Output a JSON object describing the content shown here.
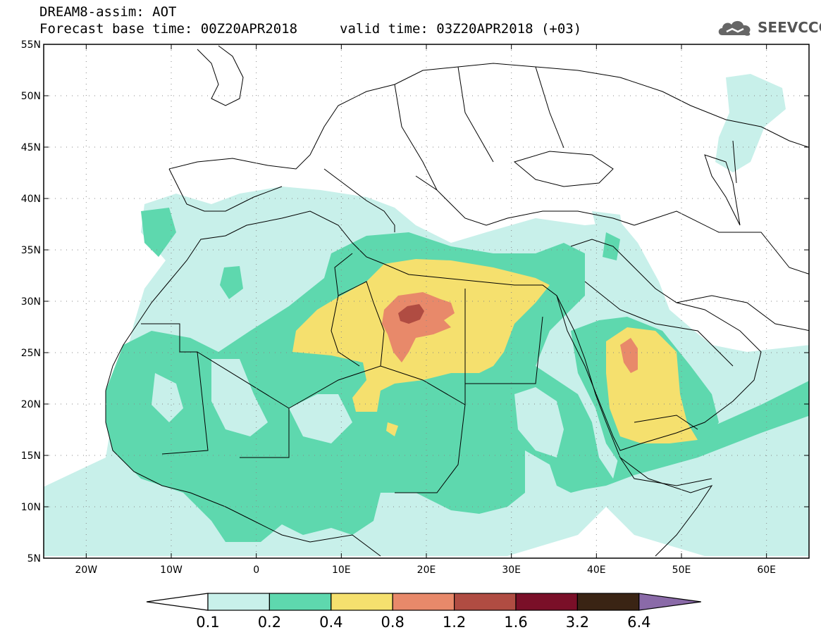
{
  "header": {
    "model_title": "DREAM8-assim: AOT",
    "base_time": "Forecast base time: 00Z20APR2018",
    "valid_time": "valid time: 03Z20APR2018 (+03)",
    "logo_text": "SEEVCCC"
  },
  "map": {
    "lon_range": [
      -25,
      65
    ],
    "lat_range": [
      5,
      55
    ],
    "lat_ticks": [
      {
        "value": 55,
        "label": "55N"
      },
      {
        "value": 50,
        "label": "50N"
      },
      {
        "value": 45,
        "label": "45N"
      },
      {
        "value": 40,
        "label": "40N"
      },
      {
        "value": 35,
        "label": "35N"
      },
      {
        "value": 30,
        "label": "30N"
      },
      {
        "value": 25,
        "label": "25N"
      },
      {
        "value": 20,
        "label": "20N"
      },
      {
        "value": 15,
        "label": "15N"
      },
      {
        "value": 10,
        "label": "10N"
      },
      {
        "value": 5,
        "label": "5N"
      }
    ],
    "lon_ticks": [
      {
        "value": -20,
        "label": "20W"
      },
      {
        "value": -10,
        "label": "10W"
      },
      {
        "value": 0,
        "label": "0"
      },
      {
        "value": 10,
        "label": "10E"
      },
      {
        "value": 20,
        "label": "20E"
      },
      {
        "value": 30,
        "label": "30E"
      },
      {
        "value": 40,
        "label": "40E"
      },
      {
        "value": 50,
        "label": "50E"
      },
      {
        "value": 60,
        "label": "60E"
      }
    ],
    "gridlines": "dotted"
  },
  "colorbar": {
    "labels": [
      "0.1",
      "0.2",
      "0.4",
      "0.8",
      "1.2",
      "1.6",
      "3.2",
      "6.4"
    ],
    "colors": [
      "#c8f0ea",
      "#5ed8ae",
      "#f5e06e",
      "#e8896a",
      "#b04c42",
      "#7a0f28",
      "#3a2414",
      "#8a6aa8"
    ],
    "under_color": "#ffffff"
  }
}
